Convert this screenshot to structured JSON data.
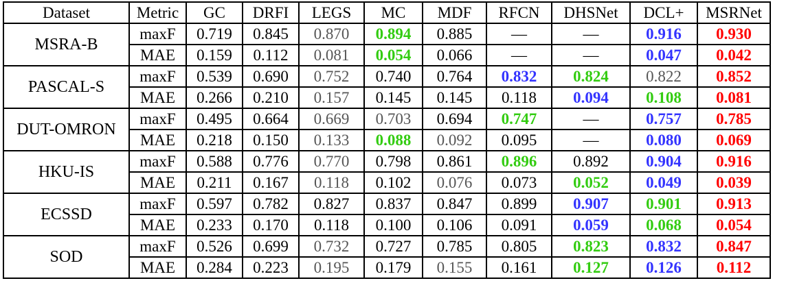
{
  "table": {
    "headers": [
      "Dataset",
      "Metric",
      "GC",
      "DRFI",
      "LEGS",
      "MC",
      "MDF",
      "RFCN",
      "DHSNet",
      "DCL+",
      "MSRNet"
    ],
    "colors": {
      "red": "#ff0000",
      "blue": "#3333ff",
      "green": "#33cc11",
      "gray": "#555555"
    },
    "datasets": [
      {
        "name": "MSRA-B",
        "rows": [
          {
            "metric": "maxF",
            "cells": [
              {
                "v": "0.719"
              },
              {
                "v": "0.845"
              },
              {
                "v": "0.870",
                "s": "gray"
              },
              {
                "v": "0.894",
                "s": "green"
              },
              {
                "v": "0.885"
              },
              {
                "v": "—"
              },
              {
                "v": "—"
              },
              {
                "v": "0.916",
                "s": "blue"
              },
              {
                "v": "0.930",
                "s": "red"
              }
            ]
          },
          {
            "metric": "MAE",
            "cells": [
              {
                "v": "0.159"
              },
              {
                "v": "0.112"
              },
              {
                "v": "0.081",
                "s": "gray"
              },
              {
                "v": "0.054",
                "s": "green"
              },
              {
                "v": "0.066"
              },
              {
                "v": "—"
              },
              {
                "v": "—"
              },
              {
                "v": "0.047",
                "s": "blue"
              },
              {
                "v": "0.042",
                "s": "red"
              }
            ]
          }
        ]
      },
      {
        "name": "PASCAL-S",
        "rows": [
          {
            "metric": "maxF",
            "cells": [
              {
                "v": "0.539"
              },
              {
                "v": "0.690"
              },
              {
                "v": "0.752",
                "s": "gray"
              },
              {
                "v": "0.740"
              },
              {
                "v": "0.764"
              },
              {
                "v": "0.832",
                "s": "blue"
              },
              {
                "v": "0.824",
                "s": "green"
              },
              {
                "v": "0.822",
                "s": "gray"
              },
              {
                "v": "0.852",
                "s": "red"
              }
            ]
          },
          {
            "metric": "MAE",
            "cells": [
              {
                "v": "0.266"
              },
              {
                "v": "0.210"
              },
              {
                "v": "0.157",
                "s": "gray"
              },
              {
                "v": "0.145"
              },
              {
                "v": "0.145"
              },
              {
                "v": "0.118"
              },
              {
                "v": "0.094",
                "s": "blue"
              },
              {
                "v": "0.108",
                "s": "green"
              },
              {
                "v": "0.081",
                "s": "red"
              }
            ]
          }
        ]
      },
      {
        "name": "DUT-OMRON",
        "rows": [
          {
            "metric": "maxF",
            "cells": [
              {
                "v": "0.495"
              },
              {
                "v": "0.664"
              },
              {
                "v": "0.669",
                "s": "gray"
              },
              {
                "v": "0.703",
                "s": "gray"
              },
              {
                "v": "0.694"
              },
              {
                "v": "0.747",
                "s": "green"
              },
              {
                "v": "—"
              },
              {
                "v": "0.757",
                "s": "blue"
              },
              {
                "v": "0.785",
                "s": "red"
              }
            ]
          },
          {
            "metric": "MAE",
            "cells": [
              {
                "v": "0.218"
              },
              {
                "v": "0.150"
              },
              {
                "v": "0.133",
                "s": "gray"
              },
              {
                "v": "0.088",
                "s": "green"
              },
              {
                "v": "0.092",
                "s": "gray"
              },
              {
                "v": "0.095"
              },
              {
                "v": "—"
              },
              {
                "v": "0.080",
                "s": "blue"
              },
              {
                "v": "0.069",
                "s": "red"
              }
            ]
          }
        ]
      },
      {
        "name": "HKU-IS",
        "rows": [
          {
            "metric": "maxF",
            "cells": [
              {
                "v": "0.588"
              },
              {
                "v": "0.776"
              },
              {
                "v": "0.770",
                "s": "gray"
              },
              {
                "v": "0.798"
              },
              {
                "v": "0.861"
              },
              {
                "v": "0.896",
                "s": "green"
              },
              {
                "v": "0.892"
              },
              {
                "v": "0.904",
                "s": "blue"
              },
              {
                "v": "0.916",
                "s": "red"
              }
            ]
          },
          {
            "metric": "MAE",
            "cells": [
              {
                "v": "0.211"
              },
              {
                "v": "0.167"
              },
              {
                "v": "0.118",
                "s": "gray"
              },
              {
                "v": "0.102"
              },
              {
                "v": "0.076",
                "s": "gray"
              },
              {
                "v": "0.073"
              },
              {
                "v": "0.052",
                "s": "green"
              },
              {
                "v": "0.049",
                "s": "blue"
              },
              {
                "v": "0.039",
                "s": "red"
              }
            ]
          }
        ]
      },
      {
        "name": "ECSSD",
        "rows": [
          {
            "metric": "maxF",
            "cells": [
              {
                "v": "0.597"
              },
              {
                "v": "0.782"
              },
              {
                "v": "0.827"
              },
              {
                "v": "0.837"
              },
              {
                "v": "0.847"
              },
              {
                "v": "0.899"
              },
              {
                "v": "0.907",
                "s": "blue"
              },
              {
                "v": "0.901",
                "s": "green"
              },
              {
                "v": "0.913",
                "s": "red"
              }
            ]
          },
          {
            "metric": "MAE",
            "cells": [
              {
                "v": "0.233"
              },
              {
                "v": "0.170"
              },
              {
                "v": "0.118"
              },
              {
                "v": "0.100"
              },
              {
                "v": "0.106"
              },
              {
                "v": "0.091"
              },
              {
                "v": "0.059",
                "s": "blue"
              },
              {
                "v": "0.068",
                "s": "green"
              },
              {
                "v": "0.054",
                "s": "red"
              }
            ]
          }
        ]
      },
      {
        "name": "SOD",
        "rows": [
          {
            "metric": "maxF",
            "cells": [
              {
                "v": "0.526"
              },
              {
                "v": "0.699"
              },
              {
                "v": "0.732",
                "s": "gray"
              },
              {
                "v": "0.727"
              },
              {
                "v": "0.785"
              },
              {
                "v": "0.805"
              },
              {
                "v": "0.823",
                "s": "green"
              },
              {
                "v": "0.832",
                "s": "blue"
              },
              {
                "v": "0.847",
                "s": "red"
              }
            ]
          },
          {
            "metric": "MAE",
            "cells": [
              {
                "v": "0.284"
              },
              {
                "v": "0.223"
              },
              {
                "v": "0.195",
                "s": "gray"
              },
              {
                "v": "0.179"
              },
              {
                "v": "0.155",
                "s": "gray"
              },
              {
                "v": "0.161"
              },
              {
                "v": "0.127",
                "s": "green"
              },
              {
                "v": "0.126",
                "s": "blue"
              },
              {
                "v": "0.112",
                "s": "red"
              }
            ]
          }
        ]
      }
    ]
  }
}
